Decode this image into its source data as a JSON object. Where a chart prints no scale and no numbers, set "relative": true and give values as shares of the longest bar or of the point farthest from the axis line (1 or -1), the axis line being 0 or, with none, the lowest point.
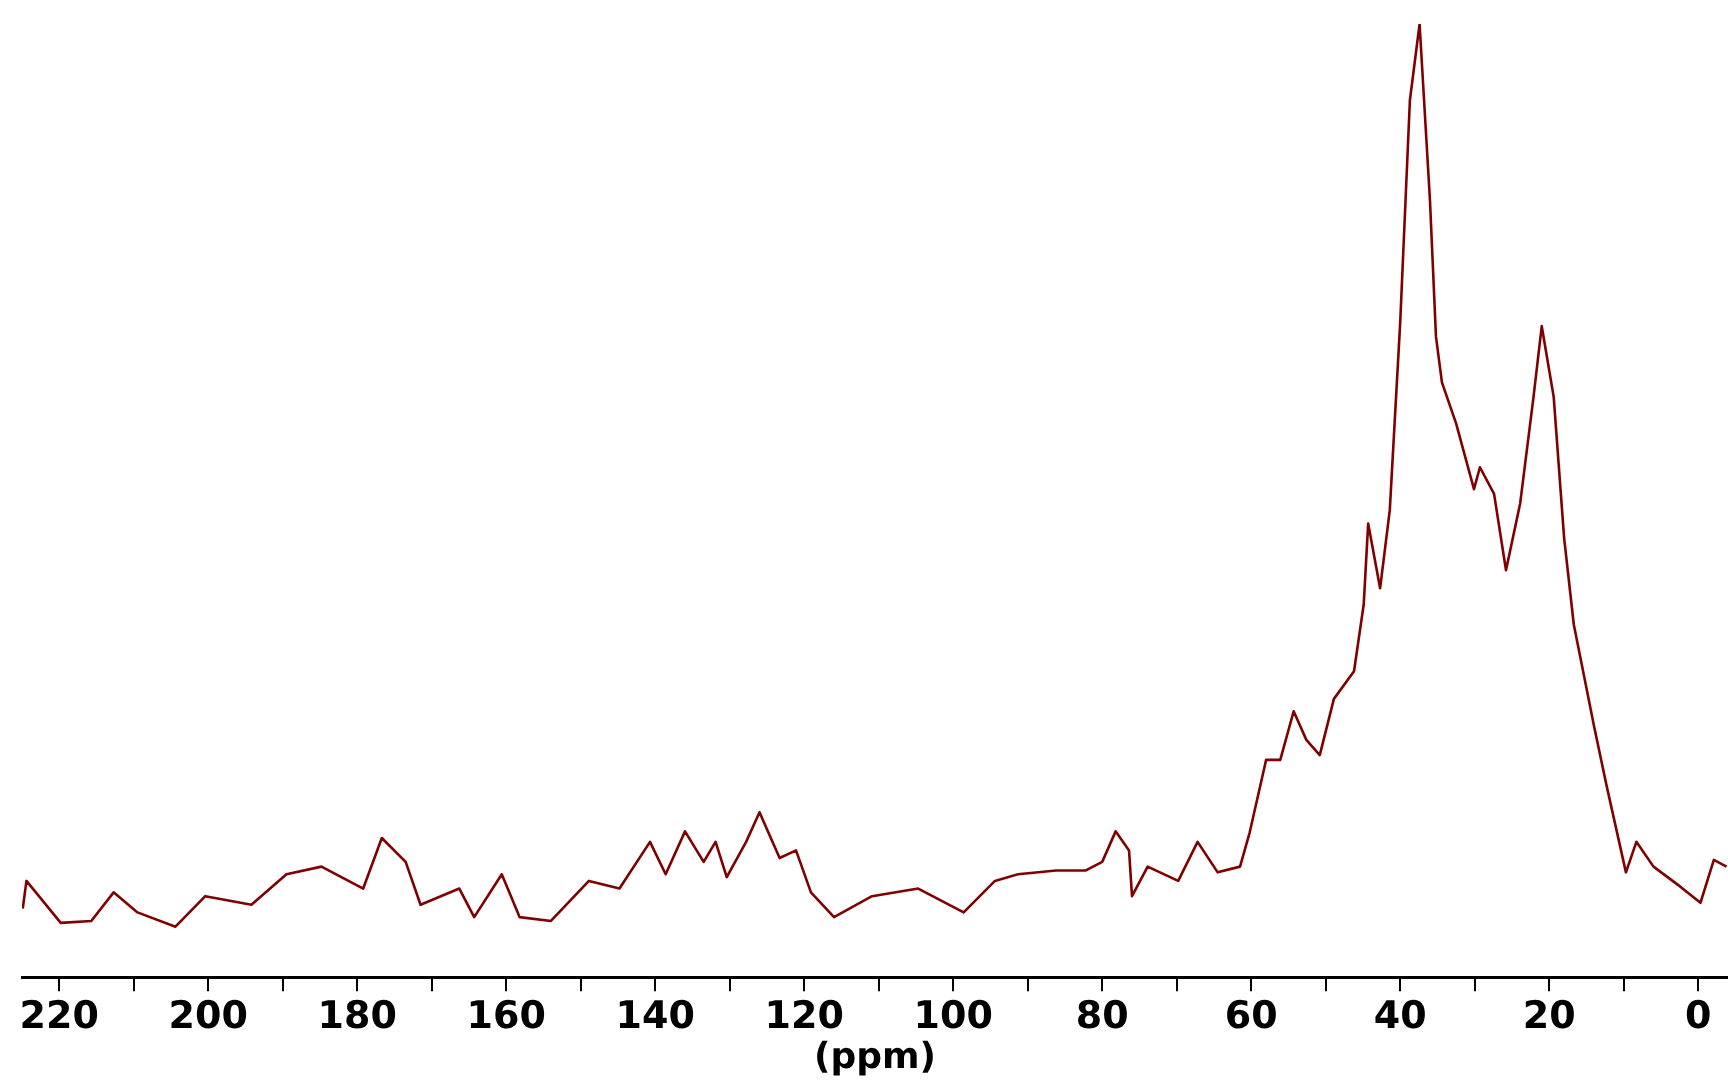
{
  "chart_data": {
    "type": "line",
    "xlabel": "(ppm)",
    "relative": true,
    "legend": false,
    "grid": false,
    "marker": "none",
    "line_style": "solid",
    "xlim": [
      225,
      -4
    ],
    "xticks": [
      220,
      {
        "value": 210,
        "label": null
      },
      200,
      {
        "value": 190,
        "label": null
      },
      180,
      {
        "value": 170,
        "label": null
      },
      160,
      {
        "value": 150,
        "label": null
      },
      140,
      {
        "value": 130,
        "label": null
      },
      120,
      {
        "value": 110,
        "label": null
      },
      100,
      {
        "value": 90,
        "label": null
      },
      80,
      {
        "value": 70,
        "label": null
      },
      60,
      {
        "value": 50,
        "label": null
      },
      40,
      {
        "value": 30,
        "label": null
      },
      20,
      {
        "value": 10,
        "label": null
      },
      0
    ],
    "x": [
      224.9,
      224.4,
      219.8,
      215.7,
      212.7,
      209.5,
      204.4,
      200.4,
      194.2,
      189.5,
      184.8,
      179.2,
      176.7,
      173.5,
      171.5,
      166.3,
      164.3,
      160.6,
      158.2,
      154.0,
      148.9,
      144.8,
      140.7,
      138.6,
      136.0,
      133.5,
      131.9,
      130.4,
      127.8,
      126.0,
      123.3,
      121.1,
      119.1,
      116.0,
      110.9,
      104.7,
      98.6,
      94.4,
      91.3,
      86.2,
      82.2,
      80.0,
      78.2,
      76.4,
      76.0,
      73.9,
      69.8,
      67.2,
      64.5,
      61.5,
      60.2,
      58.0,
      56.1,
      54.3,
      52.6,
      50.8,
      48.9,
      46.2,
      44.9,
      44.3,
      42.7,
      41.4,
      40.0,
      38.7,
      37.4,
      36.0,
      35.2,
      34.4,
      32.5,
      30.1,
      29.3,
      27.4,
      25.8,
      23.9,
      22.1,
      21.0,
      19.4,
      18.0,
      16.7,
      14.0,
      12.3,
      9.7,
      8.3,
      6.0,
      2.4,
      -0.3,
      -2.1,
      -3.8
    ],
    "series": [
      {
        "color": "#800000",
        "values": [
          0.072,
          0.101,
          0.057,
          0.059,
          0.089,
          0.068,
          0.053,
          0.085,
          0.076,
          0.108,
          0.116,
          0.093,
          0.146,
          0.121,
          0.076,
          0.093,
          0.063,
          0.108,
          0.063,
          0.059,
          0.101,
          0.093,
          0.142,
          0.108,
          0.153,
          0.121,
          0.142,
          0.105,
          0.142,
          0.173,
          0.125,
          0.133,
          0.089,
          0.063,
          0.085,
          0.093,
          0.068,
          0.101,
          0.108,
          0.112,
          0.112,
          0.121,
          0.153,
          0.133,
          0.085,
          0.116,
          0.101,
          0.142,
          0.11,
          0.116,
          0.152,
          0.228,
          0.228,
          0.279,
          0.249,
          0.233,
          0.292,
          0.321,
          0.391,
          0.476,
          0.408,
          0.49,
          0.687,
          0.92,
          1,
          0.814,
          0.672,
          0.624,
          0.581,
          0.512,
          0.535,
          0.507,
          0.427,
          0.497,
          0.609,
          0.683,
          0.609,
          0.461,
          0.37,
          0.264,
          0.201,
          0.11,
          0.142,
          0.116,
          0.095,
          0.078,
          0.123,
          0.116
        ]
      }
    ]
  }
}
